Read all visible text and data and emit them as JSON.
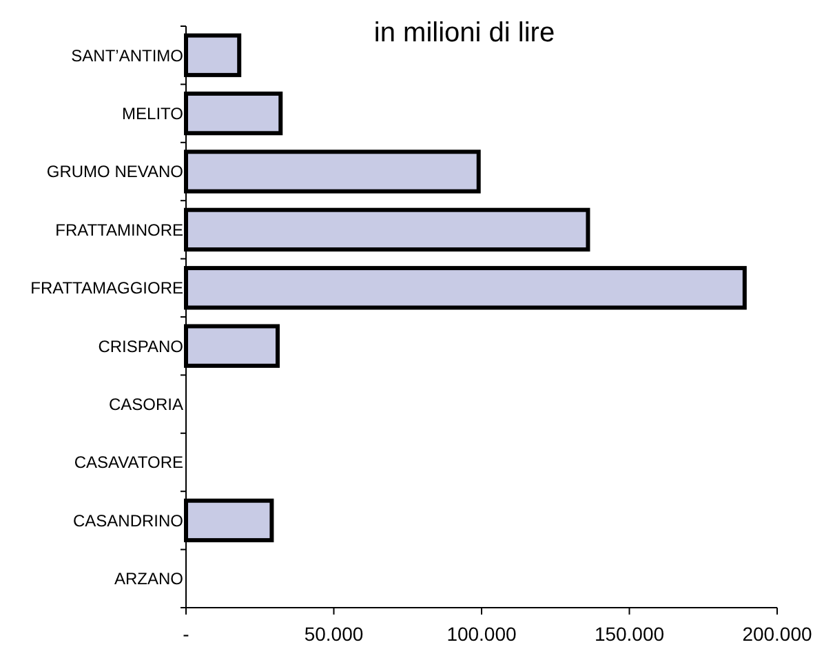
{
  "chart_data": {
    "type": "bar",
    "orientation": "horizontal",
    "title": "in milioni di lire",
    "categories": [
      "SANT’ANTIMO",
      "MELITO",
      "GRUMO NEVANO",
      "FRATTAMINORE",
      "FRATTAMAGGIORE",
      "CRISPANO",
      "CASORIA",
      "CASAVATORE",
      "CASANDRINO",
      "ARZANO"
    ],
    "values": [
      18000,
      32000,
      99000,
      136000,
      189000,
      31000,
      0,
      0,
      29000,
      0
    ],
    "color": "#c8cbe5",
    "xlim": [
      0,
      200000
    ],
    "xticks": [
      {
        "value": 0,
        "label": "-"
      },
      {
        "value": 50000,
        "label": "50.000"
      },
      {
        "value": 100000,
        "label": "100.000"
      },
      {
        "value": 150000,
        "label": "150.000"
      },
      {
        "value": 200000,
        "label": "200.000"
      }
    ],
    "grid": false
  }
}
